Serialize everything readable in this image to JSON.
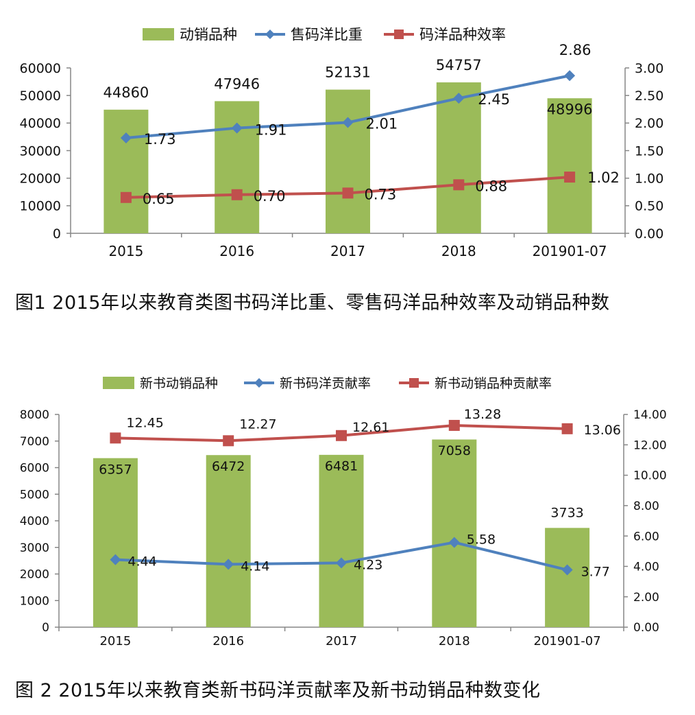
{
  "chart_data": [
    {
      "type": "bar",
      "categories": [
        "2015",
        "2016",
        "2017",
        "2018",
        "201901-07"
      ],
      "series": [
        {
          "name": "动销品种",
          "kind": "bar",
          "axis": "left",
          "color": "#9bbb59",
          "values": [
            44860,
            47946,
            52131,
            54757,
            48996
          ],
          "labels": [
            "44860",
            "47946",
            "52131",
            "54757",
            "48996"
          ]
        },
        {
          "name": "售码洋比重",
          "kind": "line",
          "marker": "diamond",
          "axis": "right",
          "color": "#4f81bd",
          "values": [
            1.73,
            1.91,
            2.01,
            2.45,
            2.86
          ],
          "labels": [
            "1.73",
            "1.91",
            "2.01",
            "2.45",
            "2.86"
          ]
        },
        {
          "name": "码洋品种效率",
          "kind": "line",
          "marker": "square",
          "axis": "right",
          "color": "#c0504d",
          "values": [
            0.65,
            0.7,
            0.73,
            0.88,
            1.02
          ],
          "labels": [
            "0.65",
            "0.70",
            "0.73",
            "0.88",
            "1.02"
          ]
        }
      ],
      "ylim": [
        0,
        60000
      ],
      "y_ticks": [
        "0",
        "10000",
        "20000",
        "30000",
        "40000",
        "50000",
        "60000"
      ],
      "y2lim": [
        0,
        3
      ],
      "y2_ticks": [
        "0.00",
        "0.50",
        "1.00",
        "1.50",
        "2.00",
        "2.50",
        "3.00"
      ],
      "legend_position": "top",
      "grid": false
    },
    {
      "type": "bar",
      "categories": [
        "2015",
        "2016",
        "2017",
        "2018",
        "201901-07"
      ],
      "series": [
        {
          "name": "新书动销品种",
          "kind": "bar",
          "axis": "left",
          "color": "#9bbb59",
          "values": [
            6357,
            6472,
            6481,
            7058,
            3733
          ],
          "labels": [
            "6357",
            "6472",
            "6481",
            "7058",
            "3733"
          ]
        },
        {
          "name": "新书码洋贡献率",
          "kind": "line",
          "marker": "diamond",
          "axis": "right",
          "color": "#4f81bd",
          "values": [
            4.44,
            4.14,
            4.23,
            5.58,
            3.77
          ],
          "labels": [
            "4.44",
            "4.14",
            "4.23",
            "5.58",
            "3.77"
          ]
        },
        {
          "name": "新书动销品种贡献率",
          "kind": "line",
          "marker": "square",
          "axis": "right",
          "color": "#c0504d",
          "values": [
            12.45,
            12.27,
            12.61,
            13.28,
            13.06
          ],
          "labels": [
            "12.45",
            "12.27",
            "12.61",
            "13.28",
            "13.06"
          ]
        }
      ],
      "ylim": [
        0,
        8000
      ],
      "y_ticks": [
        "0",
        "1000",
        "2000",
        "3000",
        "4000",
        "5000",
        "6000",
        "7000",
        "8000"
      ],
      "y2lim": [
        0,
        14
      ],
      "y2_ticks": [
        "0.00",
        "2.00",
        "4.00",
        "6.00",
        "8.00",
        "10.00",
        "12.00",
        "14.00"
      ],
      "legend_position": "top",
      "grid": false
    }
  ],
  "captions": [
    "图1 2015年以来教育类图书码洋比重、零售码洋品种效率及动销品种数",
    "图 2  2015年以来教育类新书码洋贡献率及新书动销品种数变化"
  ]
}
